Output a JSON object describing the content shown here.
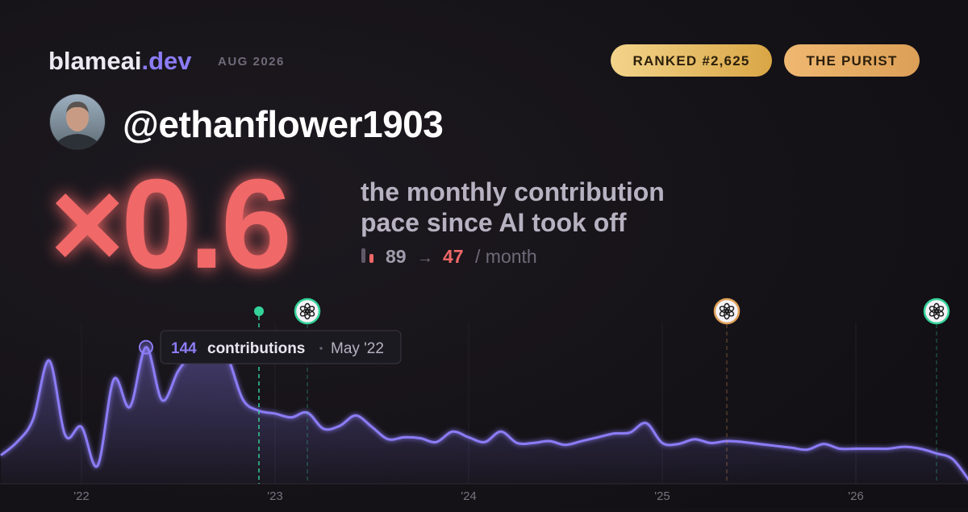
{
  "header": {
    "brand": "blameai",
    "brand_suffix": ".dev",
    "date": "AUG 2026",
    "badges": [
      "RANKED #2,625",
      "THE PURIST"
    ],
    "handle": "@ethanflower1903"
  },
  "hero": {
    "multiplier": "×0.6",
    "description": [
      "the monthly contribution",
      "pace since AI took off"
    ],
    "before": "89",
    "arrow": "→",
    "after": "47",
    "unit": "/ month"
  },
  "chart_data": {
    "type": "area",
    "x": [
      "2021-08",
      "2021-09",
      "2021-10",
      "2021-11",
      "2021-12",
      "2022-01",
      "2022-02",
      "2022-03",
      "2022-04",
      "2022-05",
      "2022-06",
      "2022-07",
      "2022-08",
      "2022-09",
      "2022-10",
      "2022-11",
      "2022-12",
      "2023-01",
      "2023-02",
      "2023-03",
      "2023-04",
      "2023-05",
      "2023-06",
      "2023-07",
      "2023-08",
      "2023-09",
      "2023-10",
      "2023-11",
      "2023-12",
      "2024-01",
      "2024-02",
      "2024-03",
      "2024-04",
      "2024-05",
      "2024-06",
      "2024-07",
      "2024-08",
      "2024-09",
      "2024-10",
      "2024-11",
      "2024-12",
      "2025-01",
      "2025-02",
      "2025-03",
      "2025-04",
      "2025-05",
      "2025-06",
      "2025-07",
      "2025-08",
      "2025-09",
      "2025-10",
      "2025-11",
      "2025-12",
      "2026-01",
      "2026-02",
      "2026-03",
      "2026-04",
      "2026-05",
      "2026-06",
      "2026-07",
      "2026-08"
    ],
    "values": [
      30,
      44,
      68,
      130,
      51,
      60,
      19,
      110,
      81,
      144,
      88,
      119,
      140,
      149,
      136,
      89,
      77,
      74,
      70,
      75,
      58,
      61,
      72,
      60,
      47,
      49,
      48,
      44,
      55,
      49,
      44,
      55,
      43,
      43,
      45,
      41,
      45,
      49,
      53,
      54,
      64,
      43,
      42,
      47,
      43,
      45,
      44,
      42,
      40,
      38,
      36,
      42,
      37,
      37,
      37,
      37,
      39,
      37,
      32,
      26,
      4
    ],
    "color": "#8b7cf6",
    "xlim": [
      "2021-08",
      "2026-08"
    ],
    "xticks": [
      {
        "value": "2022-01",
        "label": "'22"
      },
      {
        "value": "2023-01",
        "label": "'23"
      },
      {
        "value": "2024-01",
        "label": "'24"
      },
      {
        "value": "2025-01",
        "label": "'25"
      },
      {
        "value": "2026-01",
        "label": "'26"
      }
    ],
    "ylim": [
      0,
      170
    ],
    "grid": true,
    "tooltip": {
      "unit": "contributions",
      "date_label": "May '22"
    },
    "events": [
      {
        "x": "2022-12",
        "color": "#34d399",
        "kind": "dot"
      },
      {
        "x": "2023-03",
        "color": "#34d399",
        "kind": "badge"
      },
      {
        "x": "2025-05",
        "color": "#e0a15a",
        "kind": "badge"
      },
      {
        "x": "2026-06",
        "color": "#34d399",
        "kind": "badge"
      }
    ]
  }
}
